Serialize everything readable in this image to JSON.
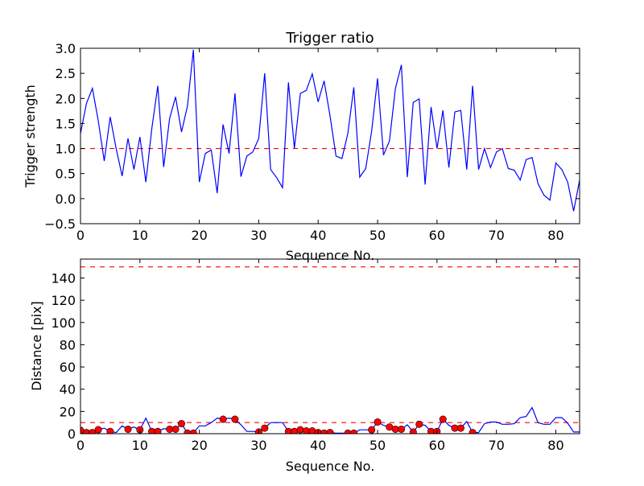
{
  "chart_data": [
    {
      "type": "line",
      "title": "Trigger ratio",
      "xlabel": "Sequence No.",
      "ylabel": "Trigger strength",
      "xlim": [
        0,
        84
      ],
      "ylim": [
        -0.5,
        3.0
      ],
      "xticks": [
        0,
        10,
        20,
        30,
        40,
        50,
        60,
        70,
        80
      ],
      "yticks": [
        -0.5,
        0.0,
        0.5,
        1.0,
        1.5,
        2.0,
        2.5,
        3.0
      ],
      "ytick_labels": [
        "−0.5",
        "0.0",
        "0.5",
        "1.0",
        "1.5",
        "2.0",
        "2.5",
        "3.0"
      ],
      "grid": false,
      "series": [
        {
          "name": "trigger strength",
          "color": "#0000ff",
          "values": [
            1.3,
            1.9,
            2.2,
            1.55,
            0.75,
            1.63,
            1.0,
            0.45,
            1.2,
            0.58,
            1.23,
            0.33,
            1.4,
            2.25,
            0.63,
            1.6,
            2.03,
            1.33,
            1.85,
            2.97,
            0.33,
            0.9,
            0.97,
            0.11,
            1.48,
            0.9,
            2.1,
            0.44,
            0.85,
            0.93,
            1.2,
            2.5,
            0.58,
            0.42,
            0.22,
            2.32,
            1.0,
            2.1,
            2.16,
            2.49,
            1.93,
            2.35,
            1.65,
            0.85,
            0.8,
            1.3,
            2.22,
            0.43,
            0.6,
            1.35,
            2.4,
            0.87,
            1.15,
            2.2,
            2.67,
            0.43,
            1.92,
            1.99,
            0.28,
            1.83,
            1.0,
            1.76,
            0.62,
            1.73,
            1.76,
            0.58,
            2.25,
            0.58,
            1.0,
            0.62,
            0.93,
            1.0,
            0.6,
            0.57,
            0.37,
            0.78,
            0.82,
            0.3,
            0.07,
            -0.03,
            0.71,
            0.58,
            0.33,
            -0.25,
            0.37
          ]
        }
      ],
      "hlines": [
        {
          "y": 1.0,
          "color": "#ff0000",
          "style": "dashed"
        }
      ]
    },
    {
      "type": "line",
      "title": "",
      "xlabel": "Sequence No.",
      "ylabel": "Distance [pix]",
      "xlim": [
        0,
        84
      ],
      "ylim": [
        0,
        157
      ],
      "xticks": [
        0,
        10,
        20,
        30,
        40,
        50,
        60,
        70,
        80
      ],
      "yticks": [
        0,
        20,
        40,
        60,
        80,
        100,
        120,
        140
      ],
      "grid": false,
      "series": [
        {
          "name": "distance",
          "color": "#0000ff",
          "values": [
            3,
            1,
            1,
            3.6,
            5,
            2,
            1,
            7,
            4,
            6,
            3.5,
            14,
            2,
            2,
            4.5,
            4,
            4,
            9,
            0.5,
            0.5,
            7,
            7,
            10,
            14,
            13,
            14,
            13,
            8,
            2,
            2,
            1.5,
            5,
            10,
            10,
            10,
            2,
            2,
            3.5,
            2.5,
            2.5,
            1,
            0.5,
            1,
            0.5,
            0.5,
            0.5,
            0.5,
            3.5,
            3.5,
            3.5,
            10.5,
            7.5,
            6,
            4,
            4,
            8,
            1.5,
            8.5,
            7.5,
            2,
            2,
            13,
            7.5,
            5,
            5,
            11,
            1,
            1,
            9,
            10.5,
            10.5,
            8.5,
            8.5,
            9,
            14.5,
            15.5,
            23.5,
            10,
            8.5,
            8.5,
            14.5,
            14.5,
            9.5,
            1.5,
            1.5
          ]
        },
        {
          "name": "triggered",
          "color": "#ff0000",
          "marker": "circle",
          "x": [
            0,
            1,
            2,
            3,
            5,
            8,
            10,
            12,
            13,
            15,
            16,
            17,
            18,
            19,
            24,
            26,
            30,
            31,
            35,
            36,
            37,
            38,
            39,
            40,
            41,
            42,
            45,
            46,
            49,
            50,
            52,
            53,
            54,
            56,
            57,
            59,
            60,
            61,
            63,
            64,
            66
          ]
        }
      ],
      "hlines": [
        {
          "y": 150,
          "color": "#ff0000",
          "style": "dashed"
        },
        {
          "y": 10,
          "color": "#ff0000",
          "style": "dashed"
        }
      ]
    }
  ]
}
